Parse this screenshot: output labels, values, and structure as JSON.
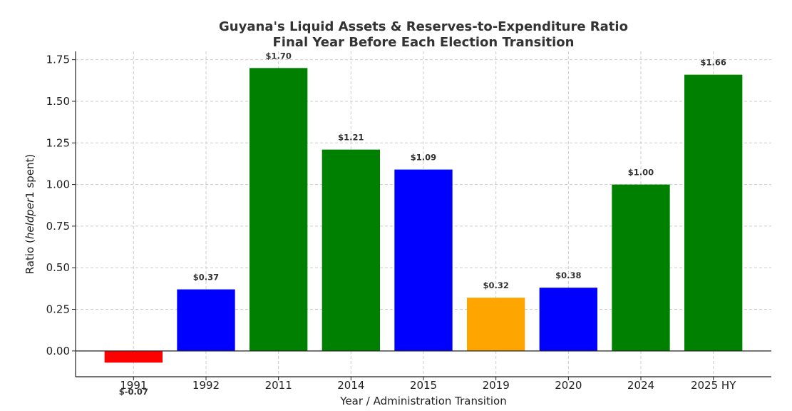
{
  "chart_data": {
    "type": "bar",
    "title_line1": "Guyana's Liquid Assets & Reserves-to-Expenditure Ratio",
    "title_line2": "Final Year Before Each Election Transition",
    "xlabel": "Year / Administration Transition",
    "ylabel_prefix": "Ratio (",
    "ylabel_italic": "heldper",
    "ylabel_suffix": "1 spent)",
    "categories": [
      "1991",
      "1992",
      "2011",
      "2014",
      "2015",
      "2019",
      "2020",
      "2024",
      "2025 HY"
    ],
    "values": [
      -0.07,
      0.37,
      1.7,
      1.21,
      1.09,
      0.32,
      0.38,
      1.0,
      1.66
    ],
    "value_labels": [
      "$-0.07",
      "$0.37",
      "$1.70",
      "$1.21",
      "$1.09",
      "$0.32",
      "$0.38",
      "$1.00",
      "$1.66"
    ],
    "colors": [
      "#ff0000",
      "#0000ff",
      "#008000",
      "#008000",
      "#0000ff",
      "#ffa500",
      "#0000ff",
      "#008000",
      "#008000"
    ],
    "yticks": [
      "0.00",
      "0.25",
      "0.50",
      "0.75",
      "1.00",
      "1.25",
      "1.50",
      "1.75"
    ],
    "ylim": [
      -0.155,
      1.8
    ],
    "grid": true
  }
}
